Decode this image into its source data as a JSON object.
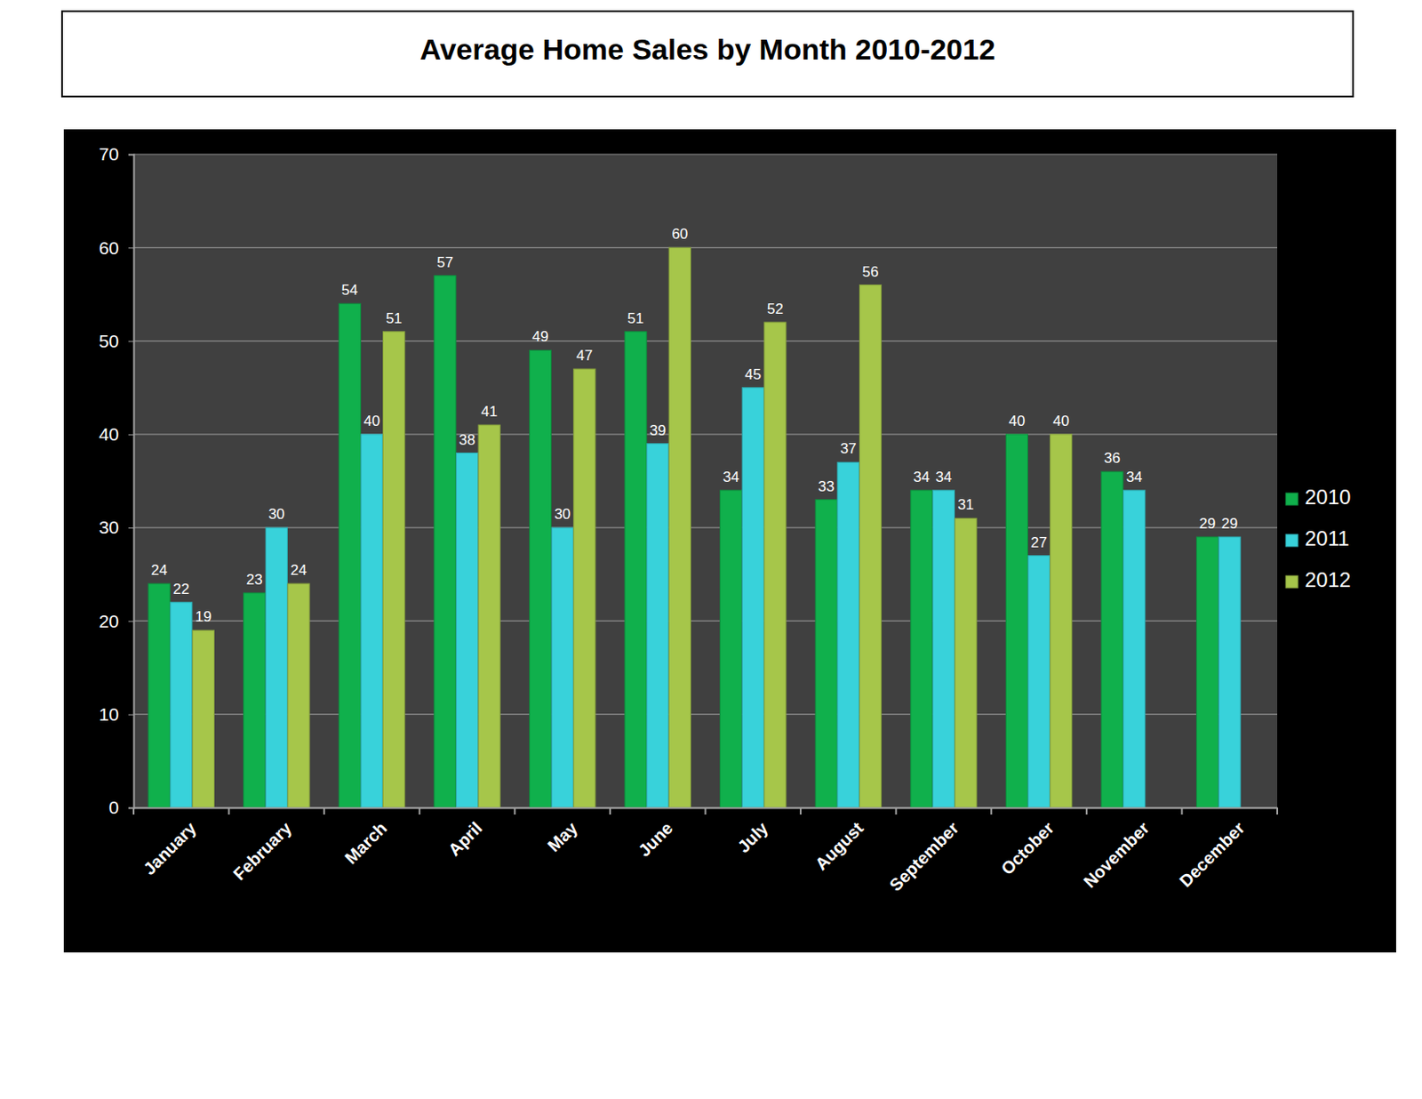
{
  "chart_data": {
    "type": "bar",
    "title": "Average Home Sales by Month 2010-2012",
    "categories": [
      "January",
      "February",
      "March",
      "April",
      "May",
      "June",
      "July",
      "August",
      "September",
      "October",
      "November",
      "December"
    ],
    "series": [
      {
        "name": "2010",
        "color": "#10b04c",
        "values": [
          24,
          23,
          54,
          57,
          49,
          51,
          34,
          33,
          34,
          40,
          36,
          29
        ]
      },
      {
        "name": "2011",
        "color": "#38d2da",
        "values": [
          22,
          30,
          40,
          38,
          30,
          39,
          45,
          37,
          34,
          27,
          34,
          29
        ]
      },
      {
        "name": "2012",
        "color": "#a6c64a",
        "values": [
          19,
          24,
          51,
          41,
          47,
          60,
          52,
          56,
          31,
          40,
          null,
          null
        ]
      }
    ],
    "ylim": [
      0,
      70
    ],
    "yticks": [
      0,
      10,
      20,
      30,
      40,
      50,
      60,
      70
    ],
    "grid": true,
    "legend": "right",
    "data_labels": true
  }
}
